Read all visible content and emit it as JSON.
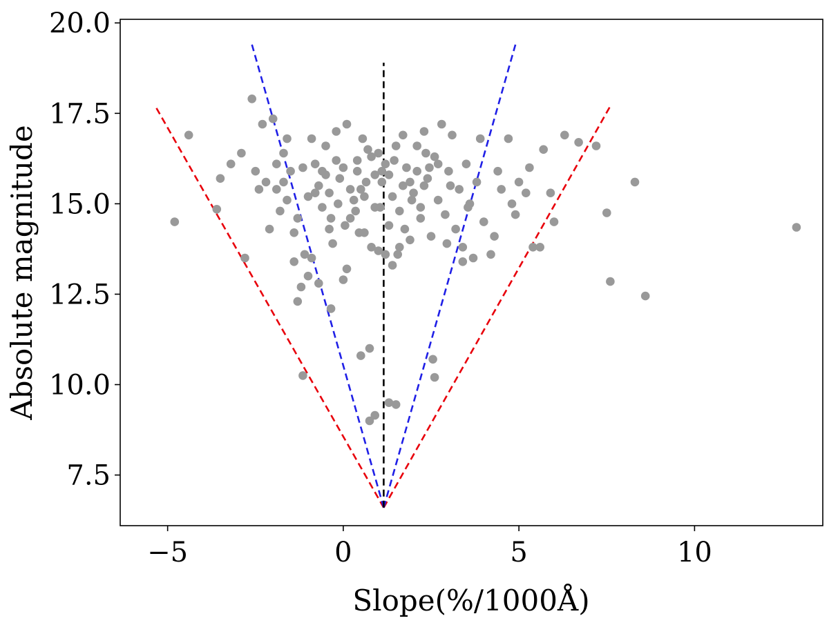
{
  "chart_data": {
    "type": "scatter",
    "title": "",
    "xlabel": "Slope(%/1000Å)",
    "ylabel": "Absolute magnitude",
    "xlim": [
      -6.35,
      13.65
    ],
    "ylim": [
      6.1,
      20.1
    ],
    "xticks": [
      -5,
      0,
      5,
      10
    ],
    "xtick_labels": [
      "−5",
      "0",
      "5",
      "10"
    ],
    "yticks": [
      7.5,
      10.0,
      12.5,
      15.0,
      17.5,
      20.0
    ],
    "ytick_labels": [
      "7.5",
      "10.0",
      "12.5",
      "15.0",
      "17.5",
      "20.0"
    ],
    "grid": false,
    "marker_color": "#999999",
    "lines": [
      {
        "name": "red-left",
        "color": "#e8000b",
        "dashed": true,
        "x": [
          1.15,
          -5.35
        ],
        "y": [
          6.6,
          17.7
        ]
      },
      {
        "name": "red-right",
        "color": "#e8000b",
        "dashed": true,
        "x": [
          1.15,
          7.6
        ],
        "y": [
          6.6,
          17.7
        ]
      },
      {
        "name": "blue-left",
        "color": "#1f1fe6",
        "dashed": true,
        "x": [
          1.15,
          -2.6
        ],
        "y": [
          6.6,
          19.4
        ]
      },
      {
        "name": "blue-right",
        "color": "#1f1fe6",
        "dashed": true,
        "x": [
          1.15,
          4.9
        ],
        "y": [
          6.6,
          19.4
        ]
      },
      {
        "name": "black-center",
        "color": "#000000",
        "dashed": true,
        "x": [
          1.15,
          1.15
        ],
        "y": [
          6.6,
          18.9
        ]
      }
    ],
    "points": [
      [
        -4.8,
        14.5
      ],
      [
        -4.4,
        16.9
      ],
      [
        -3.6,
        14.85
      ],
      [
        -3.5,
        15.7
      ],
      [
        -3.2,
        16.1
      ],
      [
        -2.9,
        16.4
      ],
      [
        -2.8,
        13.5
      ],
      [
        -2.6,
        17.9
      ],
      [
        -2.5,
        15.9
      ],
      [
        -2.4,
        15.4
      ],
      [
        -2.3,
        17.2
      ],
      [
        -2.2,
        15.6
      ],
      [
        -2.0,
        17.35
      ],
      [
        -1.9,
        15.4
      ],
      [
        -1.8,
        14.8
      ],
      [
        -1.7,
        16.4
      ],
      [
        -1.6,
        15.1
      ],
      [
        -1.5,
        15.9
      ],
      [
        -1.4,
        14.2
      ],
      [
        -1.3,
        14.6
      ],
      [
        -1.1,
        13.6
      ],
      [
        -1.0,
        15.2
      ],
      [
        -0.9,
        16.8
      ],
      [
        -0.8,
        16.1
      ],
      [
        -0.7,
        15.5
      ],
      [
        -0.6,
        14.9
      ],
      [
        -0.5,
        16.6
      ],
      [
        -0.4,
        14.3
      ],
      [
        -0.3,
        13.9
      ],
      [
        -0.2,
        17.0
      ],
      [
        -0.1,
        15.7
      ],
      [
        0.0,
        16.0
      ],
      [
        0.1,
        17.2
      ],
      [
        0.2,
        14.6
      ],
      [
        0.3,
        15.1
      ],
      [
        0.4,
        16.2
      ],
      [
        0.5,
        15.4
      ],
      [
        0.6,
        14.2
      ],
      [
        0.7,
        16.5
      ],
      [
        0.8,
        13.8
      ],
      [
        0.9,
        15.8
      ],
      [
        1.0,
        16.4
      ],
      [
        1.05,
        14.9
      ],
      [
        1.1,
        15.6
      ],
      [
        1.2,
        16.1
      ],
      [
        1.3,
        14.4
      ],
      [
        1.4,
        15.2
      ],
      [
        1.5,
        16.6
      ],
      [
        1.6,
        14.8
      ],
      [
        1.7,
        15.5
      ],
      [
        1.8,
        16.0
      ],
      [
        1.9,
        14.0
      ],
      [
        2.0,
        15.3
      ],
      [
        2.1,
        15.9
      ],
      [
        2.2,
        14.6
      ],
      [
        2.3,
        17.0
      ],
      [
        2.4,
        15.7
      ],
      [
        2.5,
        14.1
      ],
      [
        2.6,
        16.3
      ],
      [
        2.7,
        15.1
      ],
      [
        2.8,
        17.2
      ],
      [
        2.9,
        14.7
      ],
      [
        3.0,
        15.9
      ],
      [
        3.1,
        16.9
      ],
      [
        3.2,
        14.3
      ],
      [
        3.3,
        15.4
      ],
      [
        3.4,
        13.8
      ],
      [
        3.5,
        16.1
      ],
      [
        3.6,
        15.0
      ],
      [
        3.7,
        13.5
      ],
      [
        3.8,
        15.6
      ],
      [
        3.9,
        16.8
      ],
      [
        4.0,
        14.5
      ],
      [
        4.2,
        13.6
      ],
      [
        4.3,
        14.1
      ],
      [
        4.4,
        15.9
      ],
      [
        4.5,
        15.4
      ],
      [
        4.7,
        16.8
      ],
      [
        4.8,
        15.0
      ],
      [
        4.9,
        14.7
      ],
      [
        5.0,
        15.6
      ],
      [
        5.2,
        15.3
      ],
      [
        5.3,
        16.0
      ],
      [
        5.4,
        13.8
      ],
      [
        5.6,
        13.8
      ],
      [
        5.7,
        16.5
      ],
      [
        5.9,
        15.3
      ],
      [
        6.0,
        14.5
      ],
      [
        6.3,
        16.9
      ],
      [
        6.7,
        16.7
      ],
      [
        7.2,
        16.6
      ],
      [
        7.5,
        14.75
      ],
      [
        7.6,
        12.85
      ],
      [
        8.3,
        15.6
      ],
      [
        8.6,
        12.45
      ],
      [
        12.9,
        14.35
      ],
      [
        -1.4,
        13.4
      ],
      [
        -1.3,
        12.3
      ],
      [
        -1.2,
        12.7
      ],
      [
        -1.0,
        13.0
      ],
      [
        -0.9,
        13.5
      ],
      [
        -0.7,
        12.8
      ],
      [
        -0.35,
        12.1
      ],
      [
        0.0,
        12.9
      ],
      [
        0.1,
        13.2
      ],
      [
        0.5,
        10.8
      ],
      [
        0.75,
        11.0
      ],
      [
        0.75,
        9.0
      ],
      [
        0.9,
        9.15
      ],
      [
        1.3,
        9.5
      ],
      [
        1.5,
        9.45
      ],
      [
        2.55,
        10.7
      ],
      [
        2.6,
        10.2
      ],
      [
        -1.15,
        10.25
      ],
      [
        1.2,
        13.6
      ],
      [
        1.4,
        13.3
      ],
      [
        1.55,
        13.6
      ],
      [
        3.4,
        13.4
      ],
      [
        0.4,
        15.9
      ],
      [
        0.6,
        15.2
      ],
      [
        0.9,
        14.9
      ],
      [
        1.1,
        15.9
      ],
      [
        1.3,
        15.8
      ],
      [
        1.7,
        16.9
      ],
      [
        1.9,
        15.6
      ],
      [
        2.1,
        16.6
      ],
      [
        2.3,
        15.5
      ],
      [
        2.45,
        16.0
      ],
      [
        -0.6,
        15.9
      ],
      [
        -0.4,
        15.3
      ],
      [
        -0.2,
        16.2
      ],
      [
        0.2,
        15.4
      ],
      [
        0.35,
        14.8
      ],
      [
        0.55,
        16.8
      ],
      [
        0.8,
        16.3
      ],
      [
        -0.8,
        15.3
      ],
      [
        -1.15,
        16.0
      ],
      [
        -1.6,
        16.8
      ],
      [
        -2.1,
        14.3
      ],
      [
        -1.9,
        16.1
      ],
      [
        -0.35,
        14.6
      ],
      [
        -0.15,
        15.0
      ],
      [
        0.45,
        14.2
      ],
      [
        0.65,
        15.6
      ],
      [
        1.45,
        16.2
      ],
      [
        1.75,
        14.3
      ],
      [
        2.2,
        14.9
      ],
      [
        2.7,
        16.1
      ],
      [
        3.05,
        15.5
      ],
      [
        3.55,
        14.9
      ],
      [
        2.95,
        13.9
      ],
      [
        -0.5,
        15.8
      ],
      [
        -1.7,
        15.6
      ],
      [
        1.0,
        13.7
      ],
      [
        1.6,
        13.8
      ],
      [
        0.05,
        14.4
      ],
      [
        1.95,
        15.1
      ],
      [
        2.35,
        16.4
      ]
    ]
  }
}
